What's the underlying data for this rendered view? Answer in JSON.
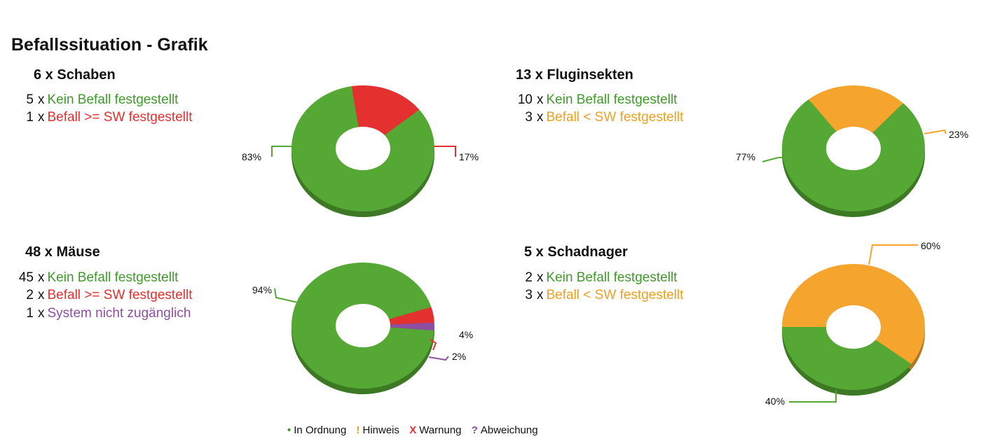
{
  "page_title": "Befallssituation - Grafik",
  "colors": {
    "green": "#55a833",
    "red": "#e53030",
    "orange": "#f5a52e",
    "purple": "#8e4fa3"
  },
  "panels": [
    {
      "title": "6 x Schaben",
      "rows": [
        {
          "count": "5",
          "label": "Kein Befall festgestellt",
          "color": "#3f9a2a"
        },
        {
          "count": "1",
          "label": "Befall >= SW festgestellt",
          "color": "#e53030"
        }
      ]
    },
    {
      "title": "13 x Fluginsekten",
      "rows": [
        {
          "count": "10",
          "label": "Kein Befall festgestellt",
          "color": "#3f9a2a"
        },
        {
          "count": "3",
          "label": "Befall < SW festgestellt",
          "color": "#f0a020"
        }
      ]
    },
    {
      "title": "48 x Mäuse",
      "rows": [
        {
          "count": "45",
          "label": "Kein Befall festgestellt",
          "color": "#3f9a2a"
        },
        {
          "count": "2",
          "label": "Befall >= SW festgestellt",
          "color": "#e53030"
        },
        {
          "count": "1",
          "label": "System nicht zugänglich",
          "color": "#8e4fa3"
        }
      ]
    },
    {
      "title": "5 x Schadnager",
      "rows": [
        {
          "count": "2",
          "label": "Kein Befall festgestellt",
          "color": "#3f9a2a"
        },
        {
          "count": "3",
          "label": "Befall < SW festgestellt",
          "color": "#f0a020"
        }
      ]
    }
  ],
  "chart_data": [
    {
      "type": "pie",
      "title": "6 x Schaben",
      "slices": [
        {
          "label": "83%",
          "value": 83,
          "color": "#55a833"
        },
        {
          "label": "17%",
          "value": 17,
          "color": "#e53030"
        }
      ]
    },
    {
      "type": "pie",
      "title": "13 x Fluginsekten",
      "slices": [
        {
          "label": "77%",
          "value": 77,
          "color": "#55a833"
        },
        {
          "label": "23%",
          "value": 23,
          "color": "#f5a52e"
        }
      ]
    },
    {
      "type": "pie",
      "title": "48 x Mäuse",
      "slices": [
        {
          "label": "94%",
          "value": 94,
          "color": "#55a833"
        },
        {
          "label": "4%",
          "value": 4,
          "color": "#e53030"
        },
        {
          "label": "2%",
          "value": 2,
          "color": "#8e4fa3"
        }
      ]
    },
    {
      "type": "pie",
      "title": "5 x Schadnager",
      "slices": [
        {
          "label": "40%",
          "value": 40,
          "color": "#55a833"
        },
        {
          "label": "60%",
          "value": 60,
          "color": "#f5a52e"
        }
      ]
    }
  ],
  "legend": [
    {
      "symbol": "•",
      "label": "In Ordnung",
      "color": "#3f9a2a"
    },
    {
      "symbol": "!",
      "label": "Hinweis",
      "color": "#f0a020"
    },
    {
      "symbol": "X",
      "label": "Warnung",
      "color": "#e53030"
    },
    {
      "symbol": "?",
      "label": "Abweichung",
      "color": "#8e4fa3"
    }
  ]
}
